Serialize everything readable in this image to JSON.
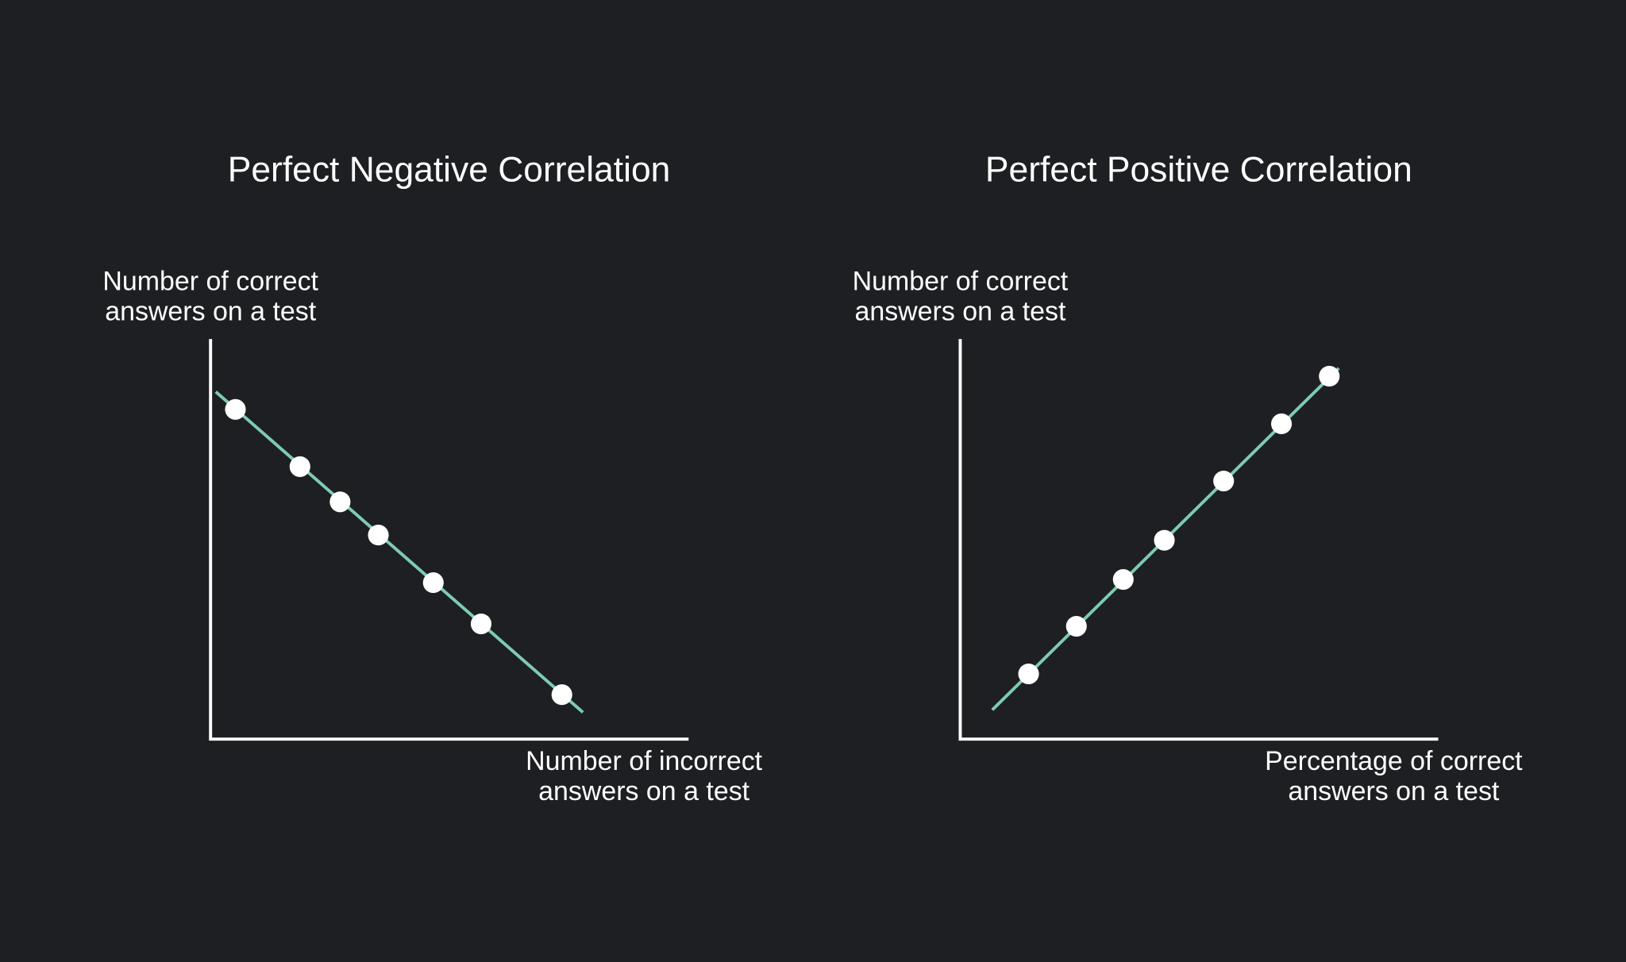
{
  "chart_data": [
    {
      "type": "scatter",
      "title": "Perfect Negative Correlation",
      "ylabel": [
        "Number of correct",
        "answers on a test"
      ],
      "xlabel": [
        "Number of incorrect",
        "answers on a test"
      ],
      "xlim": [
        0,
        100
      ],
      "ylim": [
        0,
        100
      ],
      "x": [
        5.2,
        18.7,
        27.1,
        35.1,
        46.6,
        56.6,
        73.5
      ],
      "values": [
        82.4,
        68.1,
        59.3,
        51.0,
        39.1,
        28.8,
        11.1
      ],
      "color": "#ffffff",
      "fit_line": {
        "x": [
          1.1,
          77.9
        ],
        "y": [
          86.8,
          6.7
        ],
        "color": "#7ecbb5"
      }
    },
    {
      "type": "scatter",
      "title": "Perfect Positive Correlation",
      "ylabel": [
        "Number of correct",
        "answers on a test"
      ],
      "xlabel": [
        "Percentage of correct",
        "answers on a test"
      ],
      "xlim": [
        0,
        100
      ],
      "ylim": [
        0,
        100
      ],
      "x": [
        14.3,
        24.3,
        34.1,
        42.7,
        55.1,
        67.2,
        77.2
      ],
      "values": [
        16.3,
        28.2,
        39.9,
        49.7,
        64.5,
        78.8,
        90.7
      ],
      "color": "#ffffff",
      "fit_line": {
        "x": [
          6.7,
          79.2
        ],
        "y": [
          7.3,
          92.7
        ],
        "color": "#7ecbb5"
      }
    }
  ]
}
